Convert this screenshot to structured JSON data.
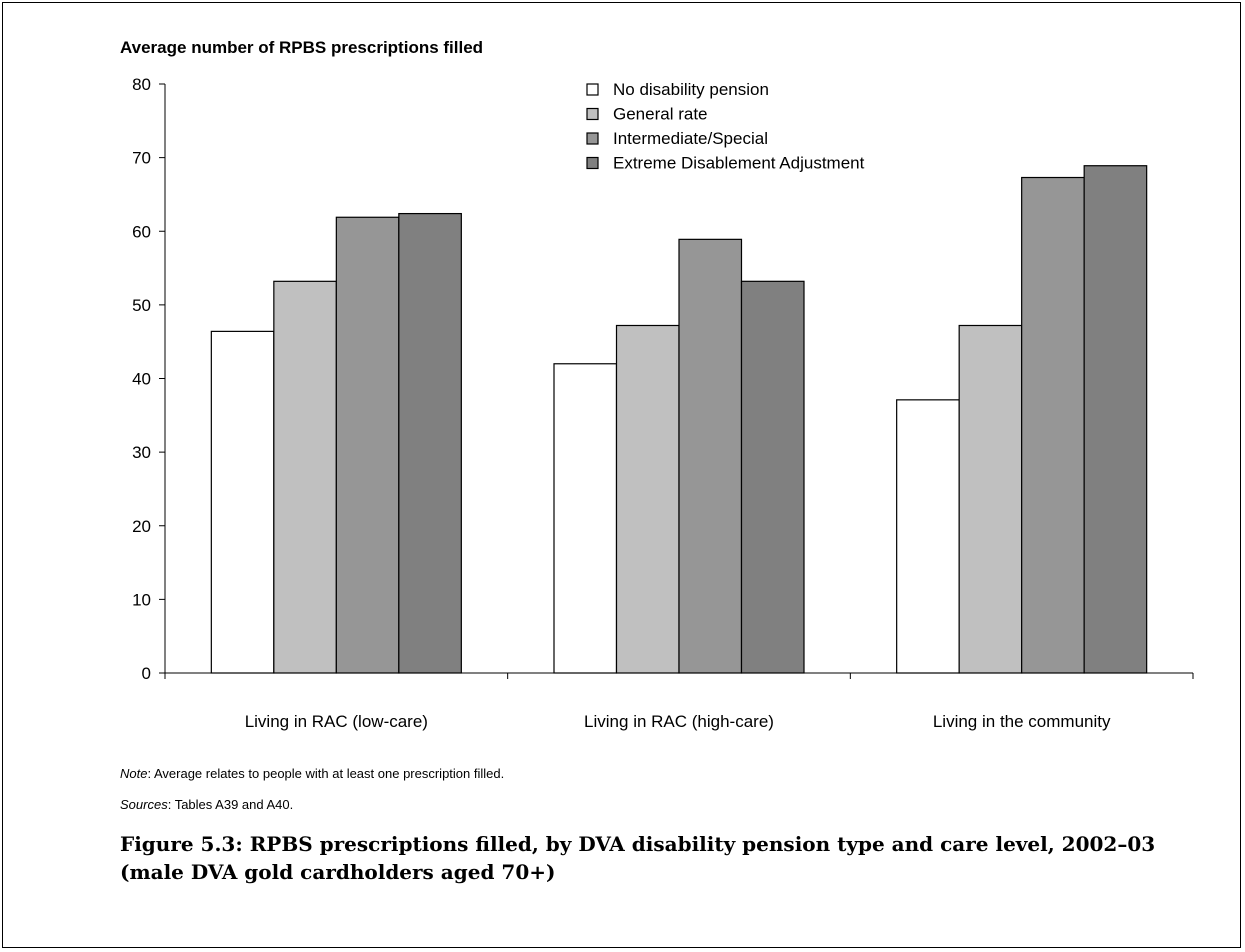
{
  "chart_data": {
    "type": "bar",
    "ylabel": "Average number of RPBS prescriptions filled",
    "xlabel": "",
    "ylim": [
      0,
      80
    ],
    "yticks": [
      0,
      10,
      20,
      30,
      40,
      50,
      60,
      70,
      80
    ],
    "categories": [
      "Living in RAC (low-care)",
      "Living in RAC (high-care)",
      "Living in the community"
    ],
    "series": [
      {
        "name": "No disability pension",
        "color": "#ffffff",
        "values": [
          46.4,
          42.0,
          37.1
        ]
      },
      {
        "name": "General rate",
        "color": "#c0c0c0",
        "values": [
          53.2,
          47.2,
          47.2
        ]
      },
      {
        "name": "Intermediate/Special",
        "color": "#969696",
        "values": [
          61.9,
          58.9,
          67.3
        ]
      },
      {
        "name": "Extreme Disablement Adjustment",
        "color": "#808080",
        "values": [
          62.4,
          53.2,
          68.9
        ]
      }
    ],
    "legend_position": "top-center",
    "grid": false
  },
  "notes": {
    "note_label": "Note",
    "note_text": ": Average relates to people with at least one prescription filled.",
    "sources_label": "Sources",
    "sources_text": ": Tables A39 and A40."
  },
  "caption": "Figure 5.3: RPBS prescriptions filled, by DVA disability pension type and care level, 2002–03 (male DVA gold cardholders aged 70+)"
}
